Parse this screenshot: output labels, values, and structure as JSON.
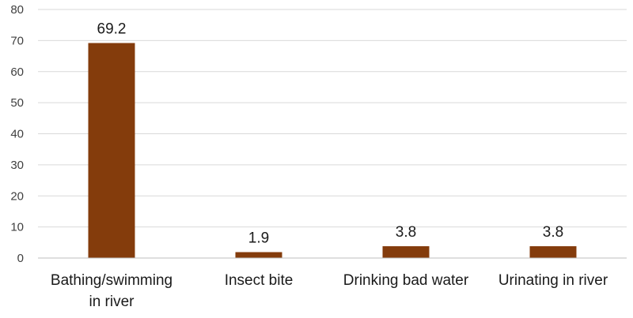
{
  "chart_data": {
    "type": "bar",
    "categories": [
      [
        "Bathing/swimming",
        "in river"
      ],
      [
        "Insect bite"
      ],
      [
        "Drinking bad water"
      ],
      [
        "Urinating in river"
      ]
    ],
    "values": [
      69.2,
      1.9,
      3.8,
      3.8
    ],
    "data_labels": [
      "69.2",
      "1.9",
      "3.8",
      "3.8"
    ],
    "yticks": [
      0,
      10,
      20,
      30,
      40,
      50,
      60,
      70,
      80
    ],
    "ylim": [
      0,
      80
    ],
    "grid": true,
    "bar_color": "#843c0c"
  }
}
